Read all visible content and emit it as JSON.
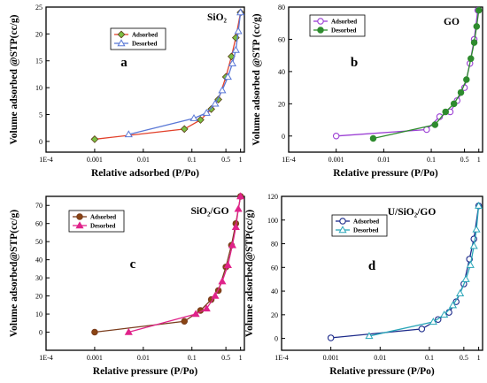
{
  "chart_data": [
    {
      "type": "line",
      "panel_letter": "a",
      "title": "SiO₂",
      "xlabel": "Relative adsorbed (P/Po)",
      "ylabel": "Volume adsorbed @STP(cc/g)",
      "xscale": "log",
      "xlim": [
        0.0001,
        1.2
      ],
      "ylim": [
        -2,
        25
      ],
      "x_ticks": [
        "1E-4",
        "0.001",
        "0.01",
        "0.1",
        "0.5",
        "1"
      ],
      "y_ticks": [
        0,
        5,
        10,
        15,
        20,
        25
      ],
      "legend_position": "top-left",
      "series": [
        {
          "name": "Adsorbed",
          "color": "#e2402a",
          "marker": "diamond",
          "marker_color": "#7bc043",
          "x": [
            0.001,
            0.07,
            0.15,
            0.25,
            0.35,
            0.5,
            0.65,
            0.8,
            1.0
          ],
          "y": [
            0.4,
            2.3,
            4.0,
            6.0,
            7.8,
            12.0,
            15.8,
            19.3,
            24.0
          ]
        },
        {
          "name": "Desorbed",
          "color": "#5a78d6",
          "marker": "triangle",
          "marker_color": "#ffffff",
          "x": [
            1.0,
            0.9,
            0.8,
            0.68,
            0.55,
            0.42,
            0.3,
            0.2,
            0.11,
            0.005
          ],
          "y": [
            24.0,
            20.5,
            17.0,
            14.5,
            12.0,
            9.5,
            7.0,
            5.3,
            4.3,
            1.3
          ]
        }
      ]
    },
    {
      "type": "line",
      "panel_letter": "b",
      "title": "GO",
      "xlabel": "Relative pressure (P/Po)",
      "ylabel": "Volume adsorbed @STP (cc/g)",
      "xscale": "log",
      "xlim": [
        0.0001,
        1.2
      ],
      "ylim": [
        -10,
        80
      ],
      "x_ticks": [
        "1E-4",
        "0.001",
        "0.01",
        "0.1",
        "0.5",
        "1"
      ],
      "y_ticks": [
        0,
        20,
        40,
        60,
        80
      ],
      "legend_position": "top-left",
      "series": [
        {
          "name": "Adsorbed",
          "color": "#9b3fd4",
          "marker": "circle",
          "marker_color": "#ffffff",
          "x": [
            0.001,
            0.08,
            0.15,
            0.25,
            0.35,
            0.5,
            0.65,
            0.8,
            0.95
          ],
          "y": [
            0,
            4,
            12,
            15,
            22,
            30,
            45,
            60,
            78
          ]
        },
        {
          "name": "Desorbed",
          "color": "#2e8b2e",
          "marker": "circle",
          "marker_color": "#2e8b2e",
          "x": [
            1.0,
            0.9,
            0.8,
            0.68,
            0.55,
            0.42,
            0.3,
            0.2,
            0.12,
            0.006
          ],
          "y": [
            78,
            68,
            58,
            48,
            35,
            27,
            20,
            15,
            7,
            -1.5
          ]
        }
      ]
    },
    {
      "type": "line",
      "panel_letter": "c",
      "title": "SiO₂/GO",
      "xlabel": "Relative pressure (P/Po)",
      "ylabel": "Volume adsorbed@STP(cc/g)",
      "xscale": "log",
      "xlim": [
        0.0001,
        1.2
      ],
      "ylim": [
        -10,
        75
      ],
      "x_ticks": [
        "1E-4",
        "0.001",
        "0.01",
        "0.1",
        "0.5",
        "1"
      ],
      "y_ticks": [
        0,
        10,
        20,
        30,
        40,
        50,
        60,
        70
      ],
      "legend_position": "top-left",
      "series": [
        {
          "name": "Adsorbed",
          "color": "#7a3c1c",
          "marker": "circle",
          "marker_color": "#8b4513",
          "x": [
            0.001,
            0.07,
            0.15,
            0.25,
            0.35,
            0.5,
            0.65,
            0.8,
            1.0
          ],
          "y": [
            0,
            6,
            12,
            18,
            23,
            36,
            48,
            60,
            75
          ]
        },
        {
          "name": "Desorbed",
          "color": "#e0238a",
          "marker": "triangle",
          "marker_color": "#e0238a",
          "x": [
            1.0,
            0.9,
            0.8,
            0.68,
            0.55,
            0.42,
            0.3,
            0.2,
            0.12,
            0.005
          ],
          "y": [
            75,
            68,
            58,
            48,
            37,
            28,
            20,
            13,
            10,
            0
          ]
        }
      ]
    },
    {
      "type": "line",
      "panel_letter": "d",
      "title": "U/SiO₂/GO",
      "xlabel": "Relative pressure (P/Po)",
      "ylabel": "Volume adsorbed@STP(cc/g)",
      "xscale": "log",
      "xlim": [
        0.0001,
        1.2
      ],
      "ylim": [
        -10,
        120
      ],
      "x_ticks": [
        "1E-4",
        "0.001",
        "0.01",
        "0.1",
        "0.5",
        "1"
      ],
      "y_ticks": [
        0,
        20,
        40,
        60,
        80,
        100,
        120
      ],
      "legend_position": "top-left",
      "series": [
        {
          "name": "Adsorbed",
          "color": "#1c2a8a",
          "marker": "circle",
          "marker_color": "#ffffff",
          "x": [
            0.001,
            0.07,
            0.15,
            0.25,
            0.35,
            0.5,
            0.65,
            0.8,
            1.0
          ],
          "y": [
            0.5,
            8,
            16,
            22,
            31,
            46,
            67,
            84,
            112
          ]
        },
        {
          "name": "Desorbed",
          "color": "#2aa6b8",
          "marker": "triangle",
          "marker_color": "#ffffff",
          "x": [
            1.0,
            0.9,
            0.8,
            0.68,
            0.55,
            0.42,
            0.3,
            0.2,
            0.12,
            0.006
          ],
          "y": [
            112,
            92,
            78,
            62,
            50,
            38,
            28,
            20,
            14,
            2
          ]
        }
      ]
    }
  ]
}
